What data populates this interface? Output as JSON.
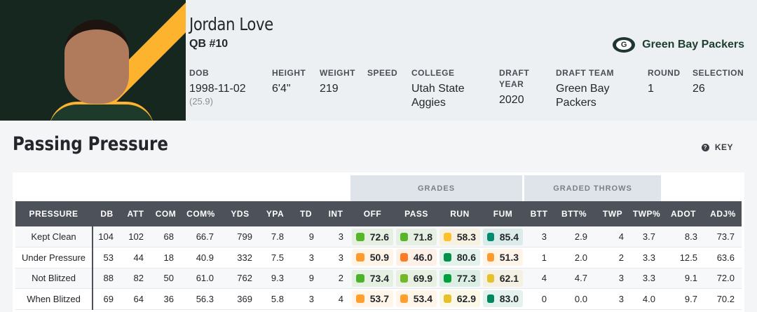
{
  "player": {
    "name": "Jordan Love",
    "position": "QB #10",
    "team": "Green Bay Packers",
    "team_logo": "G",
    "facts": [
      {
        "label": "DOB",
        "value": "1998-11-02",
        "sub": "(25.9)"
      },
      {
        "label": "HEIGHT",
        "value": "6'4\""
      },
      {
        "label": "WEIGHT",
        "value": "219"
      },
      {
        "label": "SPEED",
        "value": ""
      },
      {
        "label": "COLLEGE",
        "value": "Utah State Aggies"
      },
      {
        "label": "DRAFT YEAR",
        "value": "2020"
      },
      {
        "label": "DRAFT TEAM",
        "value": "Green Bay Packers"
      },
      {
        "label": "ROUND",
        "value": "1"
      },
      {
        "label": "SELECTION",
        "value": "26"
      }
    ]
  },
  "section": {
    "title": "Passing Pressure",
    "key_label": "KEY",
    "key_icon": "question-circle-icon"
  },
  "groups": {
    "grades": "GRADES",
    "graded_throws": "GRADED THROWS"
  },
  "columns": [
    "PRESSURE",
    "DB",
    "ATT",
    "COM",
    "COM%",
    "YDS",
    "YPA",
    "TD",
    "INT",
    "OFF",
    "PASS",
    "RUN",
    "FUM",
    "BTT",
    "BTT%",
    "TWP",
    "TWP%",
    "ADOT",
    "ADJ%"
  ],
  "rows": [
    {
      "cells": [
        "Kept Clean",
        "104",
        "102",
        "68",
        "66.7",
        "799",
        "7.8",
        "9",
        "3",
        "72.6",
        "71.8",
        "58.3",
        "85.4",
        "3",
        "2.9",
        "4",
        "3.7",
        "8.3",
        "73.7"
      ],
      "colors": [
        "#57b52a",
        "#57b52a",
        "#fdc12e",
        "#008a6e"
      ]
    },
    {
      "cells": [
        "Under Pressure",
        "53",
        "44",
        "18",
        "40.9",
        "332",
        "7.5",
        "3",
        "3",
        "50.9",
        "46.0",
        "80.6",
        "51.3",
        "1",
        "2.0",
        "2",
        "3.3",
        "12.5",
        "63.6"
      ],
      "colors": [
        "#ff9a2e",
        "#ff7a25",
        "#00914a",
        "#ff9a2e"
      ]
    },
    {
      "cells": [
        "Not Blitzed",
        "88",
        "82",
        "50",
        "61.0",
        "762",
        "9.3",
        "9",
        "2",
        "73.4",
        "69.9",
        "77.3",
        "62.1",
        "4",
        "4.7",
        "3",
        "3.3",
        "9.1",
        "72.0"
      ],
      "colors": [
        "#4cb22a",
        "#72b82a",
        "#00a03a",
        "#e6c12c"
      ]
    },
    {
      "cells": [
        "When Blitzed",
        "69",
        "64",
        "36",
        "56.3",
        "369",
        "5.8",
        "3",
        "4",
        "53.7",
        "53.4",
        "62.9",
        "83.0",
        "0",
        "0.0",
        "3",
        "4.0",
        "9.7",
        "70.2"
      ],
      "colors": [
        "#ffa02e",
        "#ffa02e",
        "#e6c12c",
        "#00875e"
      ]
    }
  ]
}
